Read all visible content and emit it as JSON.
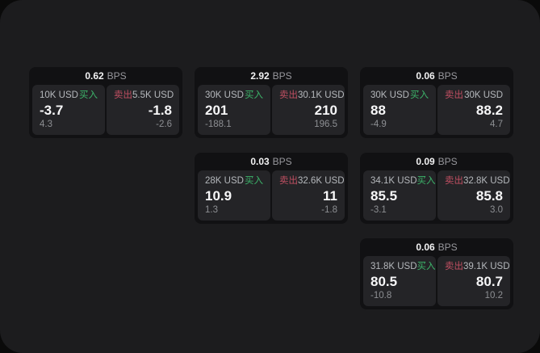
{
  "page": {
    "background": "#0a0a0a",
    "surface_background": "#1c1c1e"
  },
  "labels": {
    "bps_unit": "BPS",
    "buy": "买入",
    "sell": "卖出"
  },
  "colors": {
    "buy_accent": "#3cb46a",
    "sell_accent": "#c04f62",
    "card_background": "#111113",
    "panel_background": "#242427"
  },
  "cards": [
    {
      "bps": "0.62",
      "buy": {
        "size": "10K USD",
        "price": "-3.7",
        "delta": "4.3"
      },
      "sell": {
        "size": "5.5K USD",
        "price": "-1.8",
        "delta": "-2.6"
      }
    },
    {
      "bps": "2.92",
      "buy": {
        "size": "30K USD",
        "price": "201",
        "delta": "-188.1"
      },
      "sell": {
        "size": "30.1K USD",
        "price": "210",
        "delta": "196.5"
      }
    },
    {
      "bps": "0.06",
      "buy": {
        "size": "30K USD",
        "price": "88",
        "delta": "-4.9"
      },
      "sell": {
        "size": "30K USD",
        "price": "88.2",
        "delta": "4.7"
      }
    },
    {
      "bps": "0.03",
      "buy": {
        "size": "28K USD",
        "price": "10.9",
        "delta": "1.3"
      },
      "sell": {
        "size": "32.6K USD",
        "price": "11",
        "delta": "-1.8"
      }
    },
    {
      "bps": "0.09",
      "buy": {
        "size": "34.1K USD",
        "price": "85.5",
        "delta": "-3.1"
      },
      "sell": {
        "size": "32.8K USD",
        "price": "85.8",
        "delta": "3.0"
      }
    },
    {
      "bps": "0.06",
      "buy": {
        "size": "31.8K USD",
        "price": "80.5",
        "delta": "-10.8"
      },
      "sell": {
        "size": "39.1K USD",
        "price": "80.7",
        "delta": "10.2"
      }
    }
  ]
}
